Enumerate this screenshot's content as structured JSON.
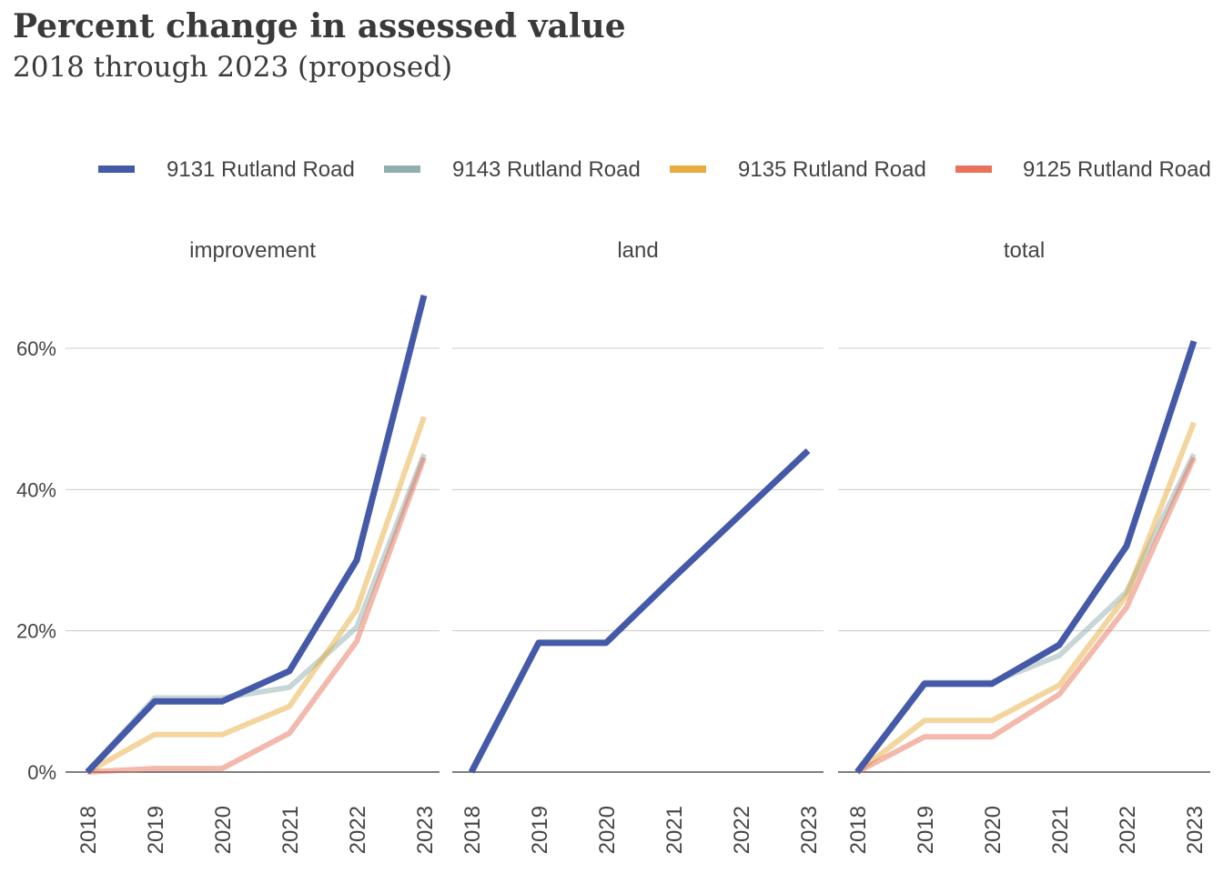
{
  "header": {
    "title": "Percent change in assessed value",
    "subtitle": "2018 through 2023 (proposed)"
  },
  "chart_data": {
    "type": "line",
    "title": "Percent change in assessed value",
    "subtitle": "2018 through 2023 (proposed)",
    "x": [
      "2018",
      "2019",
      "2020",
      "2021",
      "2022",
      "2023"
    ],
    "ylim": [
      0,
      68
    ],
    "yticks": [
      0,
      20,
      40,
      60
    ],
    "ytick_labels": [
      "0%",
      "20%",
      "40%",
      "60%"
    ],
    "grid": true,
    "legend_position": "top",
    "legend": [
      {
        "name": "9131 Rutland Road",
        "color": "#4459a8"
      },
      {
        "name": "9143 Rutland Road",
        "color": "#8fb0ae"
      },
      {
        "name": "9135 Rutland Road",
        "color": "#e8ab3e"
      },
      {
        "name": "9125 Rutland Road",
        "color": "#e8735a"
      }
    ],
    "panels": [
      {
        "name": "improvement",
        "series": [
          {
            "name": "9143 Rutland Road",
            "color": "#8fb0ae",
            "values": [
              0,
              10.5,
              10.5,
              12,
              20.5,
              45
            ]
          },
          {
            "name": "9135 Rutland Road",
            "color": "#e8ab3e",
            "values": [
              0,
              5.3,
              5.3,
              9.3,
              23,
              50.3
            ]
          },
          {
            "name": "9125 Rutland Road",
            "color": "#e8735a",
            "values": [
              0,
              0.5,
              0.5,
              5.5,
              18.5,
              44.5
            ]
          },
          {
            "name": "9131 Rutland Road",
            "color": "#4459a8",
            "values": [
              0,
              10,
              10,
              14.3,
              30,
              67.5
            ]
          }
        ]
      },
      {
        "name": "land",
        "series": [
          {
            "name": "9131 Rutland Road",
            "color": "#4459a8",
            "values": [
              0,
              18.3,
              18.3,
              27.5,
              36.5,
              45.5
            ]
          }
        ]
      },
      {
        "name": "total",
        "series": [
          {
            "name": "9143 Rutland Road",
            "color": "#8fb0ae",
            "values": [
              0,
              12.7,
              12.7,
              16.5,
              25.5,
              45
            ]
          },
          {
            "name": "9135 Rutland Road",
            "color": "#e8ab3e",
            "values": [
              0,
              7.3,
              7.3,
              12.3,
              25,
              49.5
            ]
          },
          {
            "name": "9125 Rutland Road",
            "color": "#e8735a",
            "values": [
              0,
              5,
              5,
              11,
              23.3,
              44.5
            ]
          },
          {
            "name": "9131 Rutland Road",
            "color": "#4459a8",
            "values": [
              0,
              12.5,
              12.5,
              18,
              32,
              61
            ]
          }
        ]
      }
    ]
  }
}
